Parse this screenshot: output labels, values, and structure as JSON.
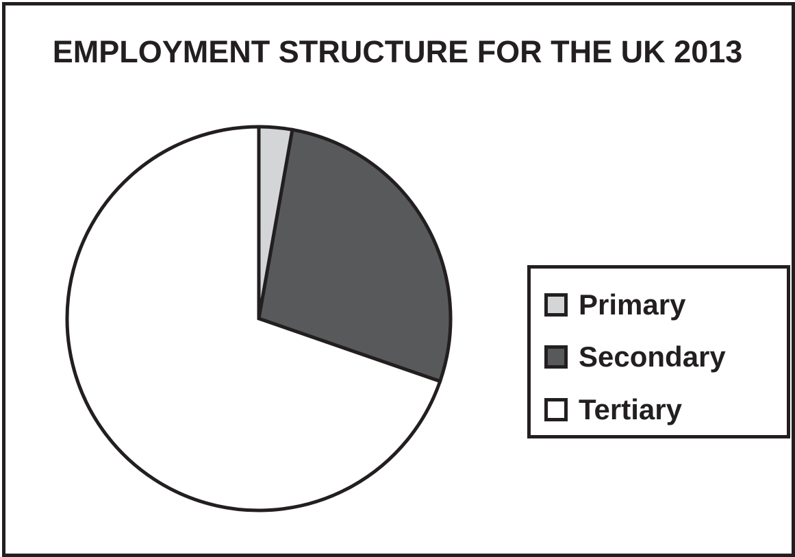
{
  "chart_data": {
    "type": "pie",
    "title": "EMPLOYMENT STRUCTURE FOR THE UK 2013",
    "categories": [
      "Primary",
      "Secondary",
      "Tertiary"
    ],
    "values": [
      2.8,
      27.5,
      69.7
    ],
    "colors": [
      "#d3d5d6",
      "#58595b",
      "#ffffff"
    ],
    "outline_color": "#231f20",
    "legend_position": "right",
    "start_angle": "top, clockwise"
  }
}
